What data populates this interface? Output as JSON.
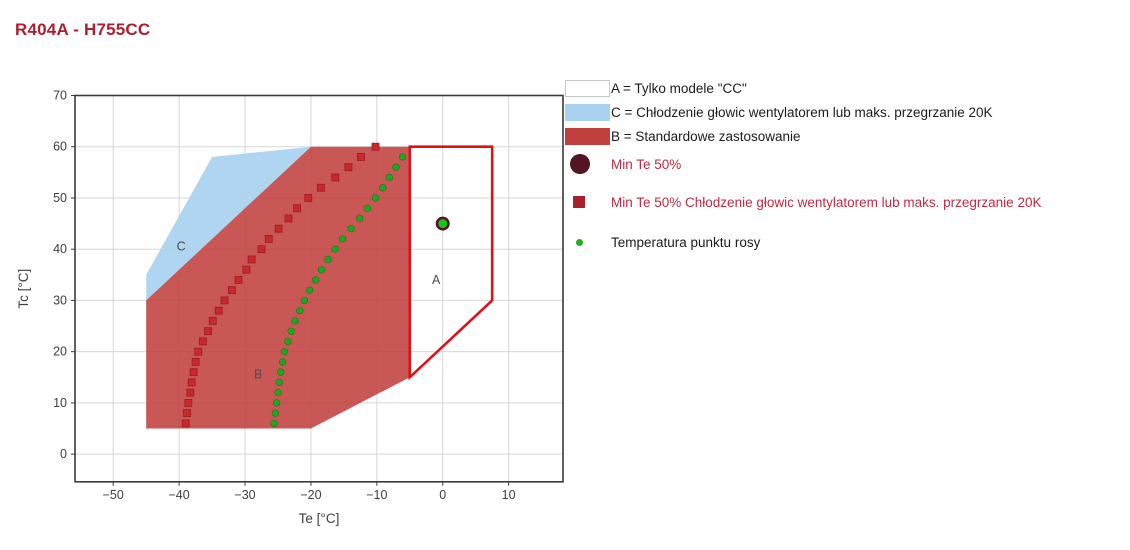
{
  "page": {
    "title": "R404A - H755CC"
  },
  "colors": {
    "title_text": "#ad1e30",
    "legend_text": "#1b1b1b",
    "legend_red_text": "#c5293f",
    "region_label_text": "#4d4d4d",
    "axis_border": "#3a3a3a",
    "grid": "#d7d7d7",
    "tick_text": "#3e3e3e"
  },
  "chart_data": {
    "type": "area",
    "title": "R404A - H755CC",
    "xlabel": "Te [°C]",
    "ylabel": "Tc [°C]",
    "xlim": [
      -55.8,
      18.25
    ],
    "ylim": [
      -5.4,
      70
    ],
    "grid": true,
    "legend_position": "right-top",
    "xticks": {
      "values": [
        -50,
        -40,
        -30,
        -20,
        -10,
        0,
        10
      ],
      "labels": [
        "−50",
        "−40",
        "−30",
        "−20",
        "−10",
        "0",
        "10"
      ]
    },
    "yticks": {
      "values": [
        0,
        10,
        20,
        30,
        40,
        50,
        60,
        70
      ],
      "labels": [
        "0",
        "10",
        "20",
        "30",
        "40",
        "50",
        "60",
        "70"
      ]
    },
    "regions": [
      {
        "id": "C",
        "label": "C",
        "description": "Chłodzenie głowic wentylatorem lub maks. przegrzanie 20K",
        "fill": "#a9d1f0",
        "fill_opacity": 0.92,
        "label_pos": [
          -39.7,
          40.5
        ],
        "vertices": [
          [
            -45,
            30
          ],
          [
            -45,
            35
          ],
          [
            -35,
            58
          ],
          [
            -20,
            60
          ]
        ]
      },
      {
        "id": "B",
        "label": "B",
        "description": "Standardowe zastosowanie",
        "fill": "#c0403d",
        "fill_opacity": 0.88,
        "label_pos": [
          -28,
          15.5
        ],
        "vertices": [
          [
            -45,
            30
          ],
          [
            -20,
            60
          ],
          [
            -5,
            60
          ],
          [
            -5,
            15
          ],
          [
            -20,
            5
          ],
          [
            -45,
            5
          ]
        ]
      },
      {
        "id": "A",
        "label": "A",
        "description": "Tylko modele \"CC\"",
        "fill": "none",
        "stroke": "#e01019",
        "stroke_width": 2.6,
        "label_pos": [
          -1,
          34
        ],
        "vertices": [
          [
            -5,
            60
          ],
          [
            7.5,
            60
          ],
          [
            7.5,
            30
          ],
          [
            -5,
            15
          ]
        ]
      }
    ],
    "series": [
      {
        "id": "min-te-50-cc",
        "name": "Min Te 50% Chłodzenie głowic wentylatorem lub maks. przegrzanie 20K",
        "marker": "square",
        "color": "#c9282d",
        "edge": "#9c1a1f",
        "size": 7,
        "points": [
          [
            -39.0,
            6
          ],
          [
            -38.8,
            8
          ],
          [
            -38.6,
            10
          ],
          [
            -38.3,
            12
          ],
          [
            -38.1,
            14
          ],
          [
            -37.8,
            16
          ],
          [
            -37.5,
            18
          ],
          [
            -37.1,
            20
          ],
          [
            -36.4,
            22
          ],
          [
            -35.6,
            24
          ],
          [
            -34.9,
            26
          ],
          [
            -34.0,
            28
          ],
          [
            -33.1,
            30
          ],
          [
            -32.0,
            32
          ],
          [
            -31.0,
            34
          ],
          [
            -29.8,
            36
          ],
          [
            -29.0,
            38
          ],
          [
            -27.5,
            40
          ],
          [
            -26.4,
            42
          ],
          [
            -24.9,
            44
          ],
          [
            -23.4,
            46
          ],
          [
            -22.1,
            48
          ],
          [
            -20.4,
            50
          ],
          [
            -18.5,
            52
          ],
          [
            -16.3,
            54
          ],
          [
            -14.3,
            56
          ],
          [
            -12.4,
            58
          ],
          [
            -10.2,
            60
          ]
        ]
      },
      {
        "id": "dew-point",
        "name": "Temperatura punktu rosy",
        "marker": "dot",
        "color": "#21a621",
        "edge": "#157815",
        "size": 6.6,
        "points": [
          [
            -25.6,
            6
          ],
          [
            -25.4,
            8
          ],
          [
            -25.2,
            10
          ],
          [
            -25.0,
            12
          ],
          [
            -24.8,
            14
          ],
          [
            -24.6,
            16
          ],
          [
            -24.3,
            18
          ],
          [
            -24.0,
            20
          ],
          [
            -23.5,
            22
          ],
          [
            -23.0,
            24
          ],
          [
            -22.4,
            26
          ],
          [
            -21.7,
            28
          ],
          [
            -21.0,
            30
          ],
          [
            -20.2,
            32
          ],
          [
            -19.3,
            34
          ],
          [
            -18.4,
            36
          ],
          [
            -17.4,
            38
          ],
          [
            -16.3,
            40
          ],
          [
            -15.2,
            42
          ],
          [
            -13.9,
            44
          ],
          [
            -12.6,
            46
          ],
          [
            -11.4,
            48
          ],
          [
            -10.2,
            50
          ],
          [
            -9.1,
            52
          ],
          [
            -8.1,
            54
          ],
          [
            -7.1,
            56
          ],
          [
            -6.1,
            58
          ]
        ]
      },
      {
        "id": "min-te-50",
        "name": "Min Te 50%",
        "marker": "ring-dot",
        "outer_color": "#511621",
        "inner_color": "#1ec41e",
        "outer_r": 7,
        "inner_r": 4.4,
        "points": [
          [
            0,
            45
          ]
        ]
      }
    ]
  },
  "legend": {
    "items": [
      {
        "label": "A = Tylko modele \"CC\"",
        "marker": "swatch",
        "color": "#ffffff",
        "border": "#c8c8c8",
        "text_color": "#1b1b1b"
      },
      {
        "label": "C = Chłodzenie głowic wentylatorem lub maks. przegrzanie 20K",
        "marker": "swatch",
        "color": "#a9d1f0",
        "border": "#a9d1f0",
        "text_color": "#1b1b1b"
      },
      {
        "label": "B = Standardowe zastosowanie",
        "marker": "swatch",
        "color": "#c0403d",
        "border": "#c0403d",
        "text_color": "#1b1b1b"
      },
      {
        "label": "Min Te 50%",
        "marker": "circle",
        "color": "#511621",
        "text_color": "#c5293f"
      },
      {
        "label": "Min Te 50% Chłodzenie głowic wentylatorem lub maks. przegrzanie 20K",
        "marker": "square",
        "color": "#a8212c",
        "text_color": "#c5293f"
      },
      {
        "label": "Temperatura punktu rosy",
        "marker": "dot",
        "color": "#1db31d",
        "text_color": "#1b1b1b"
      }
    ]
  }
}
